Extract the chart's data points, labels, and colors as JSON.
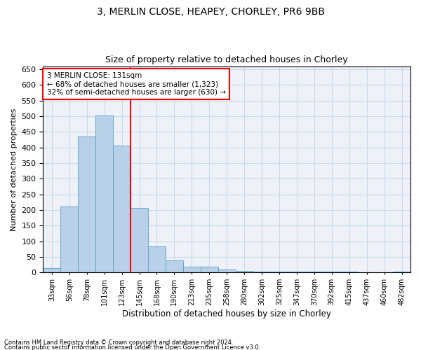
{
  "title1": "3, MERLIN CLOSE, HEAPEY, CHORLEY, PR6 9BB",
  "title2": "Size of property relative to detached houses in Chorley",
  "xlabel": "Distribution of detached houses by size in Chorley",
  "ylabel": "Number of detached properties",
  "categories": [
    "33sqm",
    "56sqm",
    "78sqm",
    "101sqm",
    "123sqm",
    "145sqm",
    "168sqm",
    "190sqm",
    "213sqm",
    "235sqm",
    "258sqm",
    "280sqm",
    "302sqm",
    "325sqm",
    "347sqm",
    "370sqm",
    "392sqm",
    "415sqm",
    "437sqm",
    "460sqm",
    "482sqm"
  ],
  "values": [
    15,
    212,
    436,
    502,
    407,
    207,
    84,
    38,
    18,
    18,
    10,
    5,
    4,
    4,
    3,
    3,
    3,
    3,
    2,
    1,
    4
  ],
  "bar_color": "#b8d0e8",
  "bar_edge_color": "#5a9ec9",
  "marker_label": "3 MERLIN CLOSE: 131sqm",
  "annotation_line1": "← 68% of detached houses are smaller (1,323)",
  "annotation_line2": "32% of semi-detached houses are larger (630) →",
  "ylim": [
    0,
    660
  ],
  "yticks": [
    0,
    50,
    100,
    150,
    200,
    250,
    300,
    350,
    400,
    450,
    500,
    550,
    600,
    650
  ],
  "footnote1": "Contains HM Land Registry data © Crown copyright and database right 2024.",
  "footnote2": "Contains public sector information licensed under the Open Government Licence v3.0.",
  "bg_color": "#eef2f8",
  "grid_color": "#c8d8ec",
  "title1_fontsize": 10,
  "title2_fontsize": 9,
  "red_line_index": 4,
  "bar_width": 1.0
}
